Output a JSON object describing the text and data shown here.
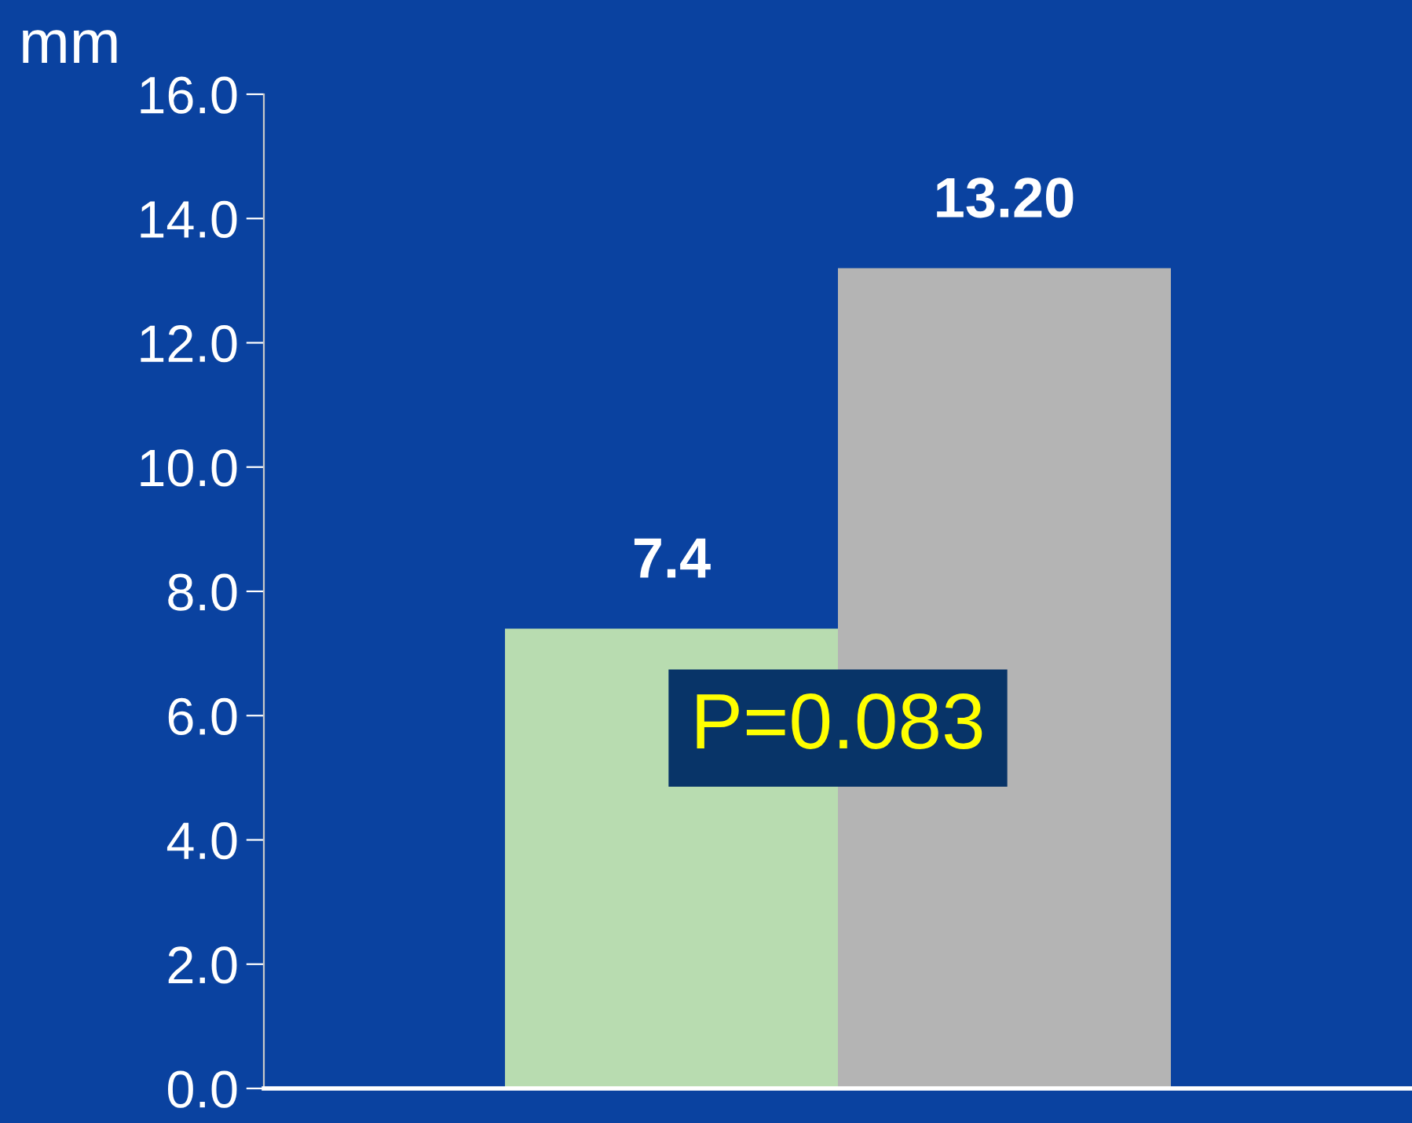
{
  "chart_data": {
    "type": "bar",
    "ylabel": "mm",
    "categories": [
      null
    ],
    "series": [
      {
        "color": "#b8dcb0",
        "values": [
          7.4
        ],
        "value_labels": [
          "7.4"
        ]
      },
      {
        "color": "#b4b4b4",
        "values": [
          13.2
        ],
        "value_labels": [
          "13.20"
        ]
      }
    ],
    "ylim": [
      0,
      16
    ],
    "yticks": [
      {
        "value": 0,
        "label": "0.0"
      },
      {
        "value": 2,
        "label": "2.0"
      },
      {
        "value": 4,
        "label": "4.0"
      },
      {
        "value": 6,
        "label": "6.0"
      },
      {
        "value": 8,
        "label": "8.0"
      },
      {
        "value": 10,
        "label": "10.0"
      },
      {
        "value": 12,
        "label": "12.0"
      },
      {
        "value": 14,
        "label": "14.0"
      },
      {
        "value": 16,
        "label": "16.0"
      }
    ],
    "annotations": [
      "P=0.083"
    ],
    "grid": false,
    "legend": false,
    "tick_labels": "y"
  }
}
